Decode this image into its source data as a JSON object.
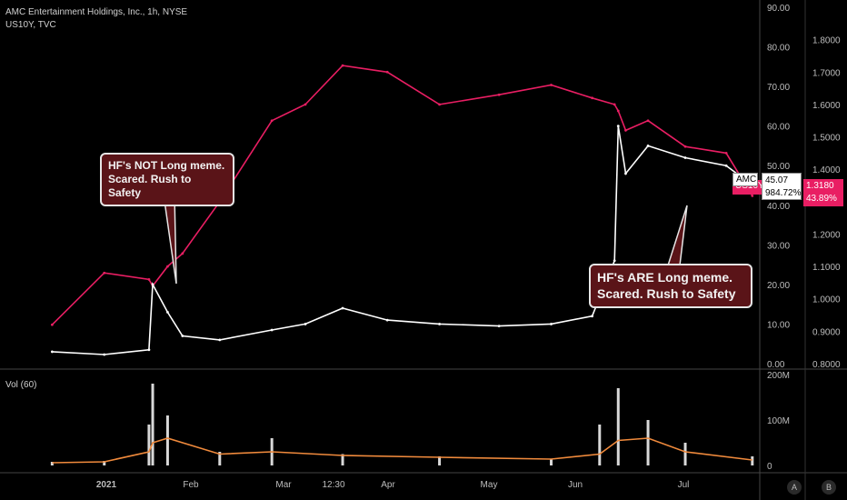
{
  "header": {
    "title": "AMC Entertainment Holdings, Inc., 1h, NYSE",
    "overlay": "US10Y, TVC"
  },
  "volume_label": "Vol (60)",
  "callouts": {
    "left": "HF's NOT Long meme.\nScared. Rush to Safety",
    "right": "HF's ARE Long meme.\nScared. Rush to Safety"
  },
  "tags": {
    "amc_symbol": "AMC",
    "amc_price": "45.07",
    "amc_pct": "984.72%",
    "us10y_symbol": "US10Y",
    "us10y_price": "1.3180",
    "us10y_pct": "43.89%"
  },
  "buttons": {
    "a": "A",
    "b": "B"
  },
  "colors": {
    "amc": "#ffffff",
    "us10y": "#e91e63",
    "vol_ma": "#f08a3c",
    "callout_bg": "#5a1418",
    "tag_pink": "#e91e63"
  },
  "chart_data": [
    {
      "type": "line",
      "title": "AMC Entertainment Holdings, Inc., 1h, NYSE",
      "x": [
        "2021-01-01",
        "2021-01-15",
        "2021-01-27",
        "2021-01-28",
        "2021-02-01",
        "2021-02-05",
        "2021-02-15",
        "2021-03-01",
        "2021-03-10",
        "2021-03-20",
        "2021-04-01",
        "2021-04-15",
        "2021-05-01",
        "2021-05-15",
        "2021-05-26",
        "2021-06-01",
        "2021-06-02",
        "2021-06-04",
        "2021-06-10",
        "2021-06-20",
        "2021-07-01",
        "2021-07-08"
      ],
      "x_ticks": [
        "2021",
        "Feb",
        "Mar",
        "12:30",
        "Apr",
        "May",
        "Jun",
        "Jul"
      ],
      "series": [
        {
          "name": "AMC",
          "axis": "left",
          "values": [
            3.0,
            2.3,
            3.5,
            20.0,
            13.0,
            7.0,
            6.0,
            8.5,
            10.0,
            14.0,
            11.0,
            10.0,
            9.5,
            10.0,
            12.0,
            26.0,
            60.0,
            48.0,
            55.0,
            52.0,
            50.0,
            45.07
          ]
        },
        {
          "name": "US10Y",
          "axis": "right",
          "values": [
            0.92,
            1.08,
            1.06,
            1.04,
            1.1,
            1.14,
            1.3,
            1.55,
            1.6,
            1.72,
            1.7,
            1.6,
            1.63,
            1.66,
            1.62,
            1.6,
            1.58,
            1.52,
            1.55,
            1.47,
            1.45,
            1.318
          ]
        }
      ],
      "ylim": [
        0,
        90
      ],
      "y_ticks": [
        "0.00",
        "10.00",
        "20.00",
        "30.00",
        "40.00",
        "50.00",
        "60.00",
        "70.00",
        "80.00",
        "90.00"
      ],
      "y2lim": [
        0.8,
        1.9
      ],
      "y2_ticks": [
        "0.8000",
        "0.9000",
        "1.0000",
        "1.1000",
        "1.2000",
        "1.3000",
        "1.4000",
        "1.5000",
        "1.6000",
        "1.7000",
        "1.8000"
      ],
      "grid": false
    },
    {
      "type": "bar",
      "title": "Vol (60)",
      "x": [
        "2021-01-01",
        "2021-01-15",
        "2021-01-27",
        "2021-01-28",
        "2021-02-01",
        "2021-02-15",
        "2021-03-01",
        "2021-03-20",
        "2021-04-15",
        "2021-05-15",
        "2021-05-28",
        "2021-06-02",
        "2021-06-10",
        "2021-06-20",
        "2021-07-08"
      ],
      "series": [
        {
          "name": "Vol",
          "values": [
            8,
            10,
            90,
            180,
            110,
            30,
            60,
            25,
            20,
            15,
            90,
            170,
            100,
            50,
            20
          ]
        },
        {
          "name": "MA (60)",
          "values": [
            6,
            8,
            30,
            50,
            60,
            25,
            30,
            22,
            18,
            14,
            25,
            55,
            60,
            30,
            12
          ]
        }
      ],
      "y_ticks": [
        "0",
        "100M",
        "200M"
      ],
      "ylim": [
        0,
        200
      ]
    }
  ]
}
